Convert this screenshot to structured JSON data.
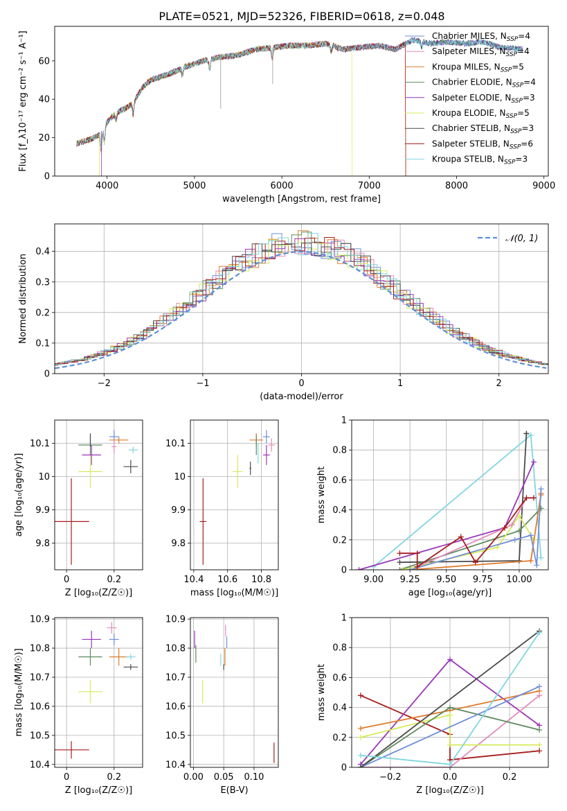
{
  "title": "PLATE=0521, MJD=52326, FIBERID=0618, z=0.048",
  "colors": {
    "Chabrier MILES": "#6f8fd8",
    "Salpeter MILES": "#e38cbc",
    "Kroupa MILES": "#e07b2a",
    "Chabrier ELODIE": "#5e8a5e",
    "Salpeter ELODIE": "#9a35b8",
    "Kroupa ELODIE": "#d6eb5a",
    "Chabrier STELIB": "#4a4a4a",
    "Salpeter STELIB": "#a51c1c",
    "Kroupa STELIB": "#7fd6e0"
  },
  "chart_data": [
    {
      "type": "line",
      "id": "spectrum",
      "xlabel": "wavelength [Angstrom, rest frame]",
      "ylabel": "Flux [f_λ10⁻¹⁷ erg cm⁻² s⁻¹ A⁻¹]",
      "xlim": [
        3400,
        9050
      ],
      "ylim": [
        0,
        78
      ],
      "xticks": [
        4000,
        5000,
        6000,
        7000,
        8000,
        9000
      ],
      "yticks": [
        0,
        20,
        40,
        60
      ],
      "legend": {
        "placement": "top-right",
        "entries": [
          {
            "model": "Chabrier MILES",
            "label": "Chabrier MILES, N",
            "sub": "SSP",
            "tail": "=4"
          },
          {
            "model": "Salpeter MILES",
            "label": "Salpeter MILES, N",
            "sub": "SSP",
            "tail": "=4"
          },
          {
            "model": "Kroupa MILES",
            "label": "Kroupa MILES, N",
            "sub": "SSP",
            "tail": "=5"
          },
          {
            "model": "Chabrier ELODIE",
            "label": "Chabrier ELODIE, N",
            "sub": "SSP",
            "tail": "=4"
          },
          {
            "model": "Salpeter ELODIE",
            "label": "Salpeter ELODIE, N",
            "sub": "SSP",
            "tail": "=3"
          },
          {
            "model": "Kroupa ELODIE",
            "label": "Kroupa ELODIE, N",
            "sub": "SSP",
            "tail": "=5"
          },
          {
            "model": "Chabrier STELIB",
            "label": "Chabrier STELIB, N",
            "sub": "SSP",
            "tail": "=3"
          },
          {
            "model": "Salpeter STELIB",
            "label": "Salpeter STELIB, N",
            "sub": "SSP",
            "tail": "=6"
          },
          {
            "model": "Kroupa STELIB",
            "label": "Kroupa STELIB, N",
            "sub": "SSP",
            "tail": "=3"
          }
        ]
      },
      "continuum": [
        [
          3650,
          17
        ],
        [
          3800,
          19
        ],
        [
          3900,
          21
        ],
        [
          4000,
          28
        ],
        [
          4100,
          33
        ],
        [
          4200,
          35
        ],
        [
          4300,
          38
        ],
        [
          4400,
          46
        ],
        [
          4500,
          50
        ],
        [
          4700,
          53
        ],
        [
          4900,
          57
        ],
        [
          5100,
          60
        ],
        [
          5300,
          62
        ],
        [
          5500,
          63
        ],
        [
          5700,
          66
        ],
        [
          5900,
          67
        ],
        [
          6100,
          68
        ],
        [
          6300,
          68
        ],
        [
          6500,
          69
        ],
        [
          6700,
          66
        ],
        [
          6900,
          67
        ],
        [
          7100,
          68
        ],
        [
          7300,
          66
        ],
        [
          7500,
          71
        ],
        [
          7700,
          69
        ],
        [
          7900,
          70
        ],
        [
          8100,
          69
        ],
        [
          8300,
          70
        ],
        [
          8500,
          67
        ],
        [
          8760,
          66
        ]
      ],
      "cutoffs": [
        {
          "model": "Kroupa ELODIE",
          "x": 6800
        },
        {
          "model": "Salpeter STELIB",
          "x": 7415
        },
        {
          "model": "Kroupa MILES",
          "x": 7415
        },
        {
          "model": "Salpeter MILES",
          "x": 7415
        }
      ]
    },
    {
      "type": "bar",
      "id": "residuals",
      "xlabel": "(data-model)/error",
      "ylabel": "Normed distribution",
      "xlim": [
        -2.5,
        2.5
      ],
      "ylim": [
        0,
        0.49
      ],
      "xticks": [
        -2,
        -1,
        0,
        1,
        2
      ],
      "yticks": [
        0.0,
        0.1,
        0.2,
        0.3,
        0.4
      ],
      "grid": true,
      "gaussian_label": "𝒩(0, 1)",
      "gaussian_color": "#5b8fd6",
      "legend": {
        "placement": "top-right"
      }
    },
    {
      "type": "scatter",
      "id": "age-vs-Z",
      "xlabel": "Z [log₁₀(Z/Z☉)]",
      "ylabel": "age  [log₁₀(age/yr)]",
      "xlim": [
        -0.05,
        0.32
      ],
      "ylim": [
        9.72,
        10.17
      ],
      "xticks": [
        0.0,
        0.2
      ],
      "yticks": [
        9.8,
        9.9,
        10.0,
        10.1
      ],
      "grid": true,
      "points": [
        {
          "model": "Salpeter STELIB",
          "x": 0.02,
          "y": 9.865,
          "xerr": 0.075,
          "yerr": 0.13
        },
        {
          "model": "Kroupa ELODIE",
          "x": 0.1,
          "y": 10.015,
          "xerr": 0.05,
          "yerr": 0.05
        },
        {
          "model": "Chabrier ELODIE",
          "x": 0.1,
          "y": 10.095,
          "xerr": 0.05,
          "yerr": 0.03
        },
        {
          "model": "Chabrier STELIB",
          "x": 0.1,
          "y": 10.11,
          "xerr": 0.0,
          "yerr": 0.02
        },
        {
          "model": "Salpeter ELODIE",
          "x": 0.105,
          "y": 10.065,
          "xerr": 0.04,
          "yerr": 0.03
        },
        {
          "model": "Chabrier MILES",
          "x": 0.2,
          "y": 10.12,
          "xerr": 0.02,
          "yerr": 0.02
        },
        {
          "model": "Kroupa MILES",
          "x": 0.22,
          "y": 10.11,
          "xerr": 0.04,
          "yerr": 0.01
        },
        {
          "model": "Salpeter MILES",
          "x": 0.2,
          "y": 10.09,
          "xerr": 0.01,
          "yerr": 0.02
        },
        {
          "model": "Chabrier STELIB",
          "x": 0.27,
          "y": 10.03,
          "xerr": 0.03,
          "yerr": 0.02
        },
        {
          "model": "Kroupa STELIB",
          "x": 0.28,
          "y": 10.08,
          "xerr": 0.02,
          "yerr": 0.01
        }
      ]
    },
    {
      "type": "scatter",
      "id": "age-vs-mass",
      "xlabel": "mass [log₁₀(M/M☉)]",
      "ylabel": "",
      "xlim": [
        10.38,
        10.9
      ],
      "ylim": [
        9.72,
        10.17
      ],
      "xticks": [
        10.4,
        10.6,
        10.8
      ],
      "yticks": [
        9.8,
        9.9,
        10.0,
        10.1
      ],
      "grid": true,
      "points": [
        {
          "model": "Salpeter STELIB",
          "x": 10.455,
          "y": 9.865,
          "xerr": 0.02,
          "yerr": 0.13
        },
        {
          "model": "Kroupa ELODIE",
          "x": 10.66,
          "y": 10.015,
          "xerr": 0.03,
          "yerr": 0.05
        },
        {
          "model": "Chabrier STELIB",
          "x": 10.735,
          "y": 10.025,
          "xerr": 0.005,
          "yerr": 0.02
        },
        {
          "model": "Kroupa MILES",
          "x": 10.77,
          "y": 10.11,
          "xerr": 0.04,
          "yerr": 0.02
        },
        {
          "model": "Chabrier ELODIE",
          "x": 10.77,
          "y": 10.095,
          "xerr": 0.0,
          "yerr": 0.03
        },
        {
          "model": "Kroupa STELIB",
          "x": 10.78,
          "y": 10.07,
          "xerr": 0.0,
          "yerr": 0.03
        },
        {
          "model": "Chabrier MILES",
          "x": 10.83,
          "y": 10.12,
          "xerr": 0.02,
          "yerr": 0.02
        },
        {
          "model": "Salpeter ELODIE",
          "x": 10.83,
          "y": 10.065,
          "xerr": 0.02,
          "yerr": 0.03
        },
        {
          "model": "Salpeter MILES",
          "x": 10.86,
          "y": 10.095,
          "xerr": 0.02,
          "yerr": 0.02
        }
      ]
    },
    {
      "type": "line",
      "id": "mass-weight-vs-age",
      "xlabel": "age  [log₁₀(age/yr)]",
      "ylabel": "mass weight",
      "xlim": [
        8.85,
        10.2
      ],
      "ylim": [
        0.0,
        1.0
      ],
      "xticks": [
        9.0,
        9.25,
        9.5,
        9.75,
        10.0
      ],
      "xticklabels": [
        "9.00",
        "9.25",
        "9.50",
        "9.75",
        "10.00"
      ],
      "yticks": [
        0.0,
        0.2,
        0.4,
        0.6,
        0.8,
        1.0
      ],
      "grid": true,
      "series": [
        {
          "model": "Kroupa STELIB",
          "x": [
            9.0,
            10.08,
            10.15
          ],
          "y": [
            0.02,
            0.9,
            0.08
          ]
        },
        {
          "model": "Chabrier STELIB",
          "x": [
            9.18,
            10.0,
            10.05,
            10.05
          ],
          "y": [
            0.05,
            0.06,
            0.91,
            0.91
          ]
        },
        {
          "model": "Salpeter ELODIE",
          "x": [
            8.9,
            9.9,
            10.1
          ],
          "y": [
            0.0,
            0.28,
            0.72
          ]
        },
        {
          "model": "Chabrier ELODIE",
          "x": [
            9.18,
            10.0,
            10.15
          ],
          "y": [
            0.0,
            0.26,
            0.41
          ]
        },
        {
          "model": "Kroupa ELODIE",
          "x": [
            9.2,
            9.85,
            10.0,
            10.1
          ],
          "y": [
            0.0,
            0.15,
            0.36,
            0.2
          ]
        },
        {
          "model": "Kroupa MILES",
          "x": [
            9.25,
            10.08,
            10.15,
            10.15
          ],
          "y": [
            0.0,
            0.06,
            0.51,
            0.5
          ]
        },
        {
          "model": "Chabrier MILES",
          "x": [
            9.25,
            9.97,
            10.08,
            10.12,
            10.15
          ],
          "y": [
            0.0,
            0.2,
            0.23,
            0.03,
            0.54
          ]
        },
        {
          "model": "Salpeter MILES",
          "x": [
            9.3,
            9.95,
            10.05
          ],
          "y": [
            0.02,
            0.3,
            0.48
          ]
        },
        {
          "model": "Salpeter STELIB",
          "x": [
            9.18,
            9.3,
            9.3,
            9.6,
            9.7,
            9.9,
            10.05,
            10.1
          ],
          "y": [
            0.11,
            0.11,
            0.02,
            0.22,
            0.05,
            0.28,
            0.48,
            0.48
          ]
        }
      ]
    },
    {
      "type": "scatter",
      "id": "mass-vs-Z",
      "xlabel": "Z [log₁₀(Z/Z☉)]",
      "ylabel": "mass [log₁₀(M/M☉)]",
      "xlim": [
        -0.05,
        0.32
      ],
      "ylim": [
        10.39,
        10.905
      ],
      "xticks": [
        0.0,
        0.2
      ],
      "yticks": [
        10.4,
        10.5,
        10.6,
        10.7,
        10.8,
        10.9
      ],
      "grid": true,
      "points": [
        {
          "model": "Salpeter STELIB",
          "x": 0.02,
          "y": 10.45,
          "xerr": 0.075,
          "yerr": 0.03
        },
        {
          "model": "Kroupa ELODIE",
          "x": 0.1,
          "y": 10.65,
          "xerr": 0.05,
          "yerr": 0.04
        },
        {
          "model": "Chabrier ELODIE",
          "x": 0.1,
          "y": 10.77,
          "xerr": 0.05,
          "yerr": 0.03
        },
        {
          "model": "Salpeter ELODIE",
          "x": 0.105,
          "y": 10.83,
          "xerr": 0.04,
          "yerr": 0.03
        },
        {
          "model": "Salpeter MILES",
          "x": 0.19,
          "y": 10.87,
          "xerr": 0.02,
          "yerr": 0.02
        },
        {
          "model": "Chabrier MILES",
          "x": 0.2,
          "y": 10.83,
          "xerr": 0.02,
          "yerr": 0.02
        },
        {
          "model": "Kroupa MILES",
          "x": 0.22,
          "y": 10.77,
          "xerr": 0.04,
          "yerr": 0.03
        },
        {
          "model": "Chabrier STELIB",
          "x": 0.27,
          "y": 10.735,
          "xerr": 0.03,
          "yerr": 0.01
        },
        {
          "model": "Kroupa STELIB",
          "x": 0.27,
          "y": 10.77,
          "xerr": 0.02,
          "yerr": 0.01
        }
      ]
    },
    {
      "type": "scatter",
      "id": "mass-vs-ebv",
      "xlabel": "E(B-V)",
      "ylabel": "",
      "xlim": [
        -0.005,
        0.14
      ],
      "ylim": [
        10.39,
        10.905
      ],
      "xticks": [
        0.0,
        0.05,
        0.1
      ],
      "xticklabels": [
        "0.00",
        "0.05",
        "0.10"
      ],
      "yticks": [
        10.4,
        10.5,
        10.6,
        10.7,
        10.8,
        10.9
      ],
      "grid": true,
      "points": [
        {
          "model": "Salpeter ELODIE",
          "x": 0.002,
          "y": 10.83,
          "xerr": 0.0,
          "yerr": 0.03
        },
        {
          "model": "Chabrier ELODIE",
          "x": 0.004,
          "y": 10.78,
          "xerr": 0.0,
          "yerr": 0.03
        },
        {
          "model": "Kroupa ELODIE",
          "x": 0.015,
          "y": 10.65,
          "xerr": 0.0,
          "yerr": 0.04
        },
        {
          "model": "Kroupa STELIB",
          "x": 0.045,
          "y": 10.76,
          "xerr": 0.0,
          "yerr": 0.02
        },
        {
          "model": "Chabrier STELIB",
          "x": 0.05,
          "y": 10.735,
          "xerr": 0.0,
          "yerr": 0.01
        },
        {
          "model": "Kroupa MILES",
          "x": 0.052,
          "y": 10.77,
          "xerr": 0.0,
          "yerr": 0.03
        },
        {
          "model": "Salpeter MILES",
          "x": 0.053,
          "y": 10.86,
          "xerr": 0.0,
          "yerr": 0.02
        },
        {
          "model": "Chabrier MILES",
          "x": 0.055,
          "y": 10.82,
          "xerr": 0.0,
          "yerr": 0.02
        },
        {
          "model": "Salpeter STELIB",
          "x": 0.133,
          "y": 10.44,
          "xerr": 0.0,
          "yerr": 0.035
        }
      ]
    },
    {
      "type": "line",
      "id": "mass-weight-vs-Z",
      "xlabel": "Z [log₁₀(Z/Z☉)]",
      "ylabel": "mass weight",
      "xlim": [
        -0.33,
        0.33
      ],
      "ylim": [
        0.0,
        1.0
      ],
      "xticks": [
        -0.2,
        0.0,
        0.2
      ],
      "xticklabels": [
        "−0.2",
        "0.0",
        "0.2"
      ],
      "yticks": [
        0.0,
        0.2,
        0.4,
        0.6,
        0.8,
        1.0
      ],
      "grid": true,
      "series": [
        {
          "model": "Salpeter STELIB",
          "x": [
            -0.3,
            0.0,
            0.0,
            0.3
          ],
          "y": [
            0.48,
            0.22,
            0.05,
            0.11
          ]
        },
        {
          "model": "Salpeter ELODIE",
          "x": [
            -0.3,
            0.0,
            0.3
          ],
          "y": [
            0.02,
            0.72,
            0.28
          ]
        },
        {
          "model": "Kroupa MILES",
          "x": [
            -0.3,
            0.0,
            0.3
          ],
          "y": [
            0.26,
            0.38,
            0.51
          ]
        },
        {
          "model": "Salpeter MILES",
          "x": [
            -0.3,
            0.0,
            0.3
          ],
          "y": [
            0.0,
            0.0,
            0.48
          ]
        },
        {
          "model": "Kroupa ELODIE",
          "x": [
            -0.3,
            0.0,
            0.0,
            0.3
          ],
          "y": [
            0.2,
            0.35,
            0.15,
            0.15
          ]
        },
        {
          "model": "Chabrier ELODIE",
          "x": [
            -0.3,
            0.0,
            0.3
          ],
          "y": [
            0.0,
            0.4,
            0.25
          ]
        },
        {
          "model": "Chabrier MILES",
          "x": [
            -0.3,
            0.3
          ],
          "y": [
            0.0,
            0.54
          ]
        },
        {
          "model": "Chabrier STELIB",
          "x": [
            -0.3,
            0.3
          ],
          "y": [
            0.0,
            0.91
          ]
        },
        {
          "model": "Kroupa STELIB",
          "x": [
            -0.3,
            0.0,
            0.3
          ],
          "y": [
            0.08,
            0.02,
            0.9
          ]
        }
      ]
    }
  ]
}
